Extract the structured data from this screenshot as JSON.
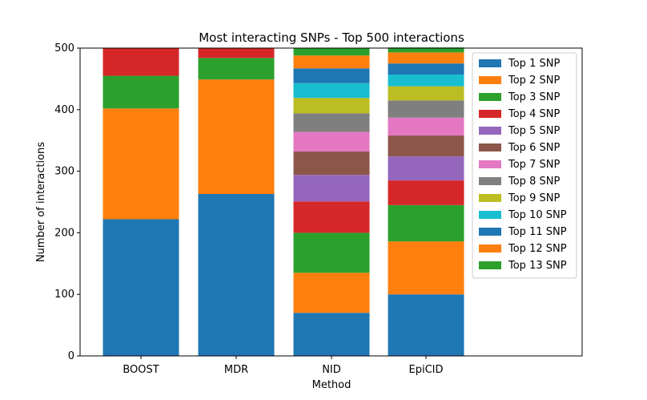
{
  "chart_data": {
    "type": "bar",
    "stacked": true,
    "title": "Most interacting SNPs - Top 500 interactions",
    "xlabel": "Method",
    "ylabel": "Number of interactions",
    "categories": [
      "BOOST",
      "MDR",
      "NID",
      "EpiCID"
    ],
    "ylim": [
      0,
      500
    ],
    "yticks": [
      0,
      100,
      200,
      300,
      400,
      500
    ],
    "grid": false,
    "legend_position": "top-right",
    "series": [
      {
        "name": "Top 1 SNP",
        "color": "#1f77b4",
        "values": [
          222,
          263,
          70,
          100
        ]
      },
      {
        "name": "Top 2 SNP",
        "color": "#ff7f0e",
        "values": [
          180,
          186,
          65,
          86
        ]
      },
      {
        "name": "Top 3 SNP",
        "color": "#2ca02c",
        "values": [
          53,
          35,
          65,
          59
        ]
      },
      {
        "name": "Top 4 SNP",
        "color": "#d62728",
        "values": [
          45,
          16,
          51,
          40
        ]
      },
      {
        "name": "Top 5 SNP",
        "color": "#9467bd",
        "values": [
          0,
          0,
          43,
          39
        ]
      },
      {
        "name": "Top 6 SNP",
        "color": "#8c564b",
        "values": [
          0,
          0,
          38,
          34
        ]
      },
      {
        "name": "Top 7 SNP",
        "color": "#e377c2",
        "values": [
          0,
          0,
          32,
          29
        ]
      },
      {
        "name": "Top 8 SNP",
        "color": "#7f7f7f",
        "values": [
          0,
          0,
          30,
          28
        ]
      },
      {
        "name": "Top 9 SNP",
        "color": "#bcbd22",
        "values": [
          0,
          0,
          25,
          23
        ]
      },
      {
        "name": "Top 10 SNP",
        "color": "#17becf",
        "values": [
          0,
          0,
          24,
          19
        ]
      },
      {
        "name": "Top 11 SNP",
        "color": "#1f77b4",
        "values": [
          0,
          0,
          24,
          18
        ]
      },
      {
        "name": "Top 12 SNP",
        "color": "#ff7f0e",
        "values": [
          0,
          0,
          21,
          18
        ]
      },
      {
        "name": "Top 13 SNP",
        "color": "#2ca02c",
        "values": [
          0,
          0,
          12,
          8
        ]
      }
    ]
  }
}
